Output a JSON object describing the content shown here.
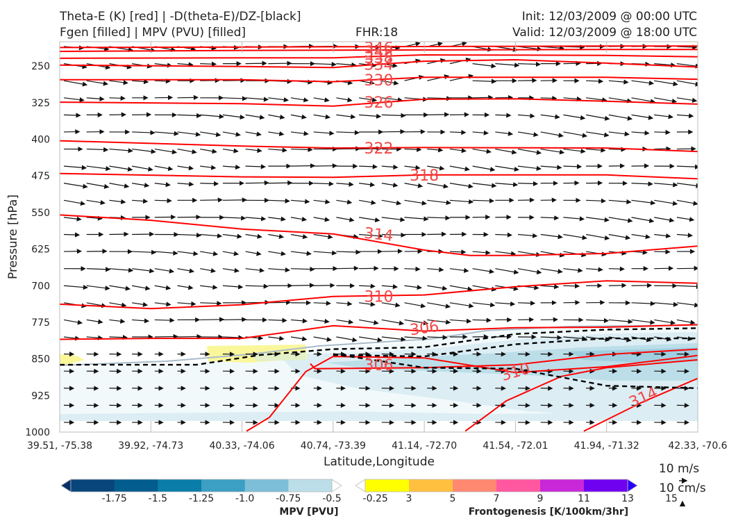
{
  "header": {
    "title_left_1": "Theta-E (K) [red] | -D(theta-E)/DZ-[black]",
    "title_left_2": "Fgen [filled] | MPV (PVU) [filled]",
    "fhr": "FHR:18",
    "init": "Init: 12/03/2009 @ 00:00 UTC",
    "valid": "Valid: 12/03/2009 @ 18:00 UTC"
  },
  "chart_data": {
    "type": "contour_cross_section",
    "xlabel": "Latitude,Longitude",
    "ylabel": "Pressure [hPa]",
    "x_ticks": [
      "39.51, -75.38",
      "39.92, -74.73",
      "40.33, -74.06",
      "40.74, -73.39",
      "41.14, -72.70",
      "41.54, -72.01",
      "41.94, -71.32",
      "42.33, -70.6"
    ],
    "y_ticks": [
      250,
      325,
      400,
      475,
      550,
      625,
      700,
      775,
      850,
      925,
      1000
    ],
    "ylim": [
      1000,
      200
    ],
    "theta_e_color": "#ff0000",
    "theta_e_contours": [
      {
        "level": 346,
        "label": "346",
        "points": [
          [
            0,
            212
          ],
          [
            2,
            211
          ],
          [
            4,
            210
          ],
          [
            6,
            209
          ],
          [
            7,
            209
          ]
        ]
      },
      {
        "level": 342,
        "label": "342",
        "points": [
          [
            0,
            220
          ],
          [
            2,
            218
          ],
          [
            4,
            217
          ],
          [
            6,
            216
          ],
          [
            7,
            216
          ]
        ]
      },
      {
        "level": 338,
        "label": "338",
        "points": [
          [
            0,
            234
          ],
          [
            2,
            233
          ],
          [
            3,
            233
          ],
          [
            4,
            227
          ],
          [
            6,
            228
          ],
          [
            7,
            231
          ]
        ]
      },
      {
        "level": 334,
        "label": "334",
        "points": [
          [
            0,
            248
          ],
          [
            2,
            251
          ],
          [
            3,
            253
          ],
          [
            4,
            240
          ],
          [
            5,
            237
          ],
          [
            6,
            244
          ],
          [
            7,
            252
          ]
        ]
      },
      {
        "level": 330,
        "label": "330",
        "points": [
          [
            0,
            278
          ],
          [
            2,
            278
          ],
          [
            3,
            282
          ],
          [
            4,
            273
          ],
          [
            6,
            273
          ],
          [
            7,
            277
          ]
        ]
      },
      {
        "level": 326,
        "label": "326",
        "points": [
          [
            0,
            324
          ],
          [
            2,
            327
          ],
          [
            3,
            332
          ],
          [
            4,
            318
          ],
          [
            5,
            317
          ],
          [
            6,
            322
          ],
          [
            7,
            328
          ]
        ]
      },
      {
        "level": 322,
        "label": "322",
        "points": [
          [
            0,
            403
          ],
          [
            2,
            414
          ],
          [
            3,
            418
          ],
          [
            4,
            417
          ],
          [
            6,
            418
          ],
          [
            7,
            425
          ]
        ]
      },
      {
        "level": 318,
        "label": "318",
        "points": [
          [
            0,
            470
          ],
          [
            2,
            477
          ],
          [
            3,
            478
          ],
          [
            4,
            473
          ],
          [
            6,
            473
          ],
          [
            7,
            481
          ]
        ]
      },
      {
        "level": 314,
        "label": "314",
        "points": [
          [
            0,
            555
          ],
          [
            1,
            566
          ],
          [
            2,
            584
          ],
          [
            3,
            594
          ],
          [
            4,
            627
          ],
          [
            4.5,
            638
          ],
          [
            5,
            638
          ],
          [
            6,
            634
          ],
          [
            7,
            619
          ]
        ]
      },
      {
        "level": 310,
        "label": "310",
        "points": [
          [
            0,
            738
          ],
          [
            1,
            747
          ],
          [
            2,
            739
          ],
          [
            3,
            722
          ],
          [
            4,
            719
          ],
          [
            5,
            702
          ],
          [
            6,
            690
          ],
          [
            7,
            695
          ]
        ]
      },
      {
        "level": 306,
        "label": "306",
        "points": [
          [
            0,
            810
          ],
          [
            1,
            808
          ],
          [
            2,
            808
          ],
          [
            3,
            782
          ],
          [
            4,
            793
          ],
          [
            5,
            786
          ],
          [
            6,
            785
          ],
          [
            7,
            780
          ]
        ]
      },
      {
        "level": 306,
        "label": "306",
        "points": [
          [
            2.75,
            860
          ],
          [
            2.8,
            870
          ],
          [
            4,
            868
          ],
          [
            5,
            862
          ],
          [
            6,
            841
          ],
          [
            7,
            830
          ]
        ]
      },
      {
        "level": 310,
        "label": "310",
        "points": [
          [
            2.05,
            998
          ],
          [
            2.3,
            970
          ],
          [
            2.7,
            876
          ],
          [
            3,
            845
          ],
          [
            4,
            848
          ],
          [
            5,
            878
          ],
          [
            6,
            866
          ],
          [
            7,
            843
          ]
        ]
      },
      {
        "level": 314,
        "label": "314",
        "points": [
          [
            4.45,
            998
          ],
          [
            4.9,
            936
          ],
          [
            5.5,
            886
          ],
          [
            6,
            868
          ],
          [
            7,
            852
          ]
        ]
      },
      {
        "level": 314,
        "label": "314",
        "points": [
          [
            5.75,
            998
          ],
          [
            6.4,
            938
          ],
          [
            7,
            890
          ]
        ]
      }
    ],
    "stability_dashed_color": "#000000",
    "stability_dashed_lines": [
      [
        [
          0,
          862
        ],
        [
          1.5,
          862
        ],
        [
          2.2,
          842
        ],
        [
          3,
          830
        ],
        [
          4,
          826
        ],
        [
          5,
          799
        ],
        [
          6,
          790
        ],
        [
          7,
          787
        ]
      ],
      [
        [
          3,
          842
        ],
        [
          4,
          845
        ],
        [
          5,
          820
        ],
        [
          6,
          808
        ],
        [
          7,
          808
        ]
      ],
      [
        [
          3,
          840
        ],
        [
          3.5,
          854
        ],
        [
          4,
          868
        ],
        [
          5,
          870
        ],
        [
          6,
          905
        ],
        [
          7,
          910
        ]
      ]
    ],
    "mpv_fill": {
      "colorbar_title": "MPV [PVU]",
      "levels": [
        "-1.75",
        "-1.5",
        "-1.25",
        "-1.0",
        "-0.75",
        "-0.5",
        "-0.25"
      ],
      "colors": [
        "#08306b",
        "#08457a",
        "#035c8e",
        "#0a7ea8",
        "#3c9fc4",
        "#7dbed8",
        "#bcdee8",
        "#ffffff"
      ]
    },
    "fgen_fill": {
      "colorbar_title": "Frontogenesis [K/100km/3hr]",
      "levels": [
        "3",
        "5",
        "7",
        "9",
        "11",
        "13",
        "15"
      ],
      "colors": [
        "#ffffff",
        "#ffff00",
        "#ffc040",
        "#ff8870",
        "#ff58a0",
        "#c828d8",
        "#7000f0",
        "#2800ff"
      ]
    },
    "quiver_key": {
      "label_1": "10 m/s",
      "label_2": "10 cm/s"
    }
  }
}
